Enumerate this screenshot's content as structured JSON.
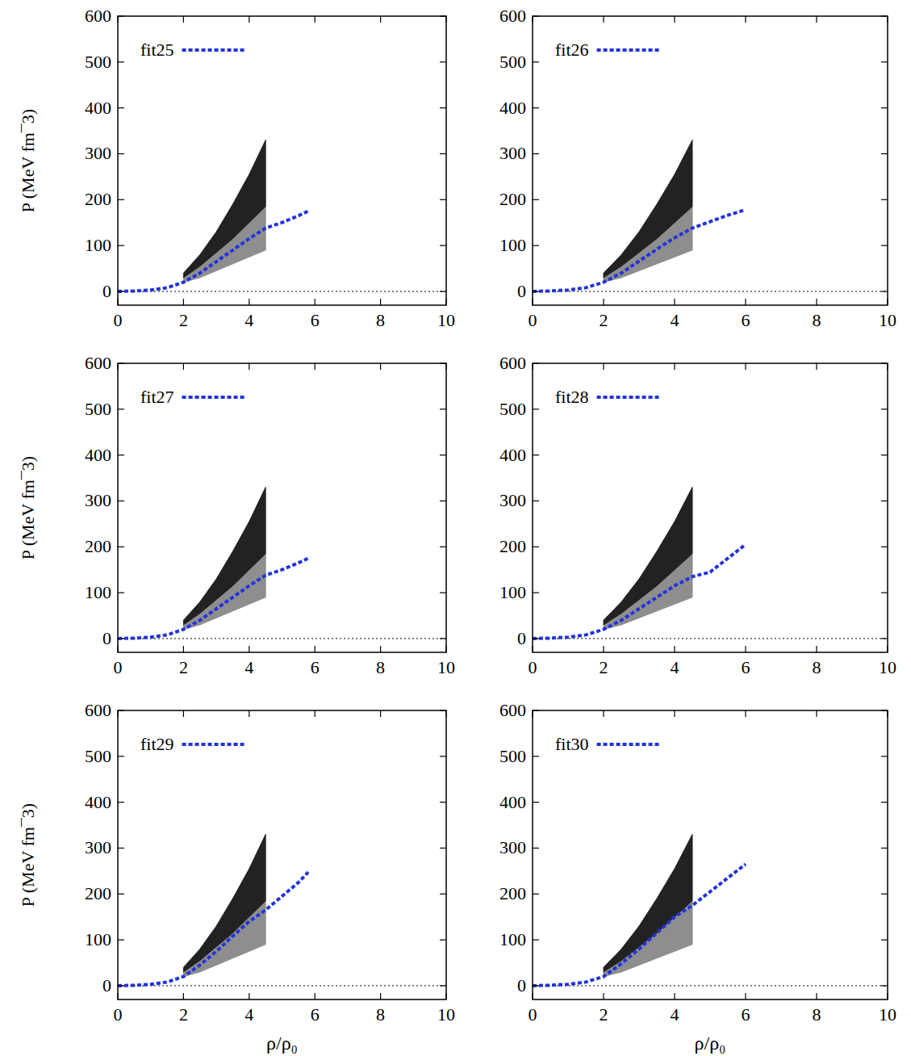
{
  "chart_data": [
    {
      "type": "line",
      "y_label": "P (MeV fm¯3)",
      "xlim": [
        0,
        10
      ],
      "xticks": [
        0,
        2,
        4,
        6,
        8,
        10
      ],
      "ylim": [
        -30,
        600
      ],
      "yticks": [
        0,
        100,
        200,
        300,
        400,
        500,
        600
      ],
      "zero_line": 0,
      "legend": "upper left",
      "series": [
        {
          "type": "area",
          "color": "#8e8e8e",
          "x": [
            2,
            2.5,
            3,
            3.5,
            4,
            4.5
          ],
          "lower": [
            20,
            30,
            45,
            60,
            75,
            90
          ],
          "upper": [
            30,
            55,
            85,
            115,
            150,
            185
          ]
        },
        {
          "type": "area",
          "color": "#222222",
          "x": [
            2,
            2.5,
            3,
            3.5,
            4,
            4.5
          ],
          "lower": [
            30,
            55,
            85,
            115,
            150,
            185
          ],
          "upper": [
            40,
            80,
            130,
            190,
            255,
            330
          ]
        },
        {
          "name": "fit25",
          "color": "#2233dd",
          "line_style": "dotted",
          "x": [
            0,
            0.5,
            1,
            1.5,
            2,
            2.5,
            3,
            3.5,
            4,
            4.5,
            5,
            5.5,
            5.8
          ],
          "values": [
            0,
            1,
            3,
            8,
            20,
            40,
            65,
            90,
            115,
            138,
            150,
            165,
            175
          ]
        }
      ]
    },
    {
      "type": "line",
      "xlim": [
        0,
        10
      ],
      "xticks": [
        0,
        2,
        4,
        6,
        8,
        10
      ],
      "ylim": [
        -30,
        600
      ],
      "yticks": [
        0,
        100,
        200,
        300,
        400,
        500,
        600
      ],
      "zero_line": 0,
      "legend": "upper left",
      "series": [
        {
          "type": "area",
          "color": "#8e8e8e",
          "x": [
            2,
            2.5,
            3,
            3.5,
            4,
            4.5
          ],
          "lower": [
            20,
            30,
            45,
            60,
            75,
            90
          ],
          "upper": [
            30,
            55,
            85,
            115,
            150,
            185
          ]
        },
        {
          "type": "area",
          "color": "#222222",
          "x": [
            2,
            2.5,
            3,
            3.5,
            4,
            4.5
          ],
          "lower": [
            30,
            55,
            85,
            115,
            150,
            185
          ],
          "upper": [
            40,
            80,
            130,
            190,
            255,
            330
          ]
        },
        {
          "name": "fit26",
          "color": "#2233dd",
          "line_style": "dotted",
          "x": [
            0,
            0.5,
            1,
            1.5,
            2,
            2.5,
            3,
            3.5,
            4,
            4.5,
            5,
            5.5,
            6
          ],
          "values": [
            0,
            1,
            3,
            8,
            20,
            40,
            66,
            92,
            117,
            138,
            152,
            166,
            178
          ]
        }
      ]
    },
    {
      "type": "line",
      "y_label": "P (MeV fm¯3)",
      "xlim": [
        0,
        10
      ],
      "xticks": [
        0,
        2,
        4,
        6,
        8,
        10
      ],
      "ylim": [
        -30,
        600
      ],
      "yticks": [
        0,
        100,
        200,
        300,
        400,
        500,
        600
      ],
      "zero_line": 0,
      "legend": "upper left",
      "series": [
        {
          "type": "area",
          "color": "#8e8e8e",
          "x": [
            2,
            2.5,
            3,
            3.5,
            4,
            4.5
          ],
          "lower": [
            20,
            30,
            45,
            60,
            75,
            90
          ],
          "upper": [
            30,
            55,
            85,
            115,
            150,
            185
          ]
        },
        {
          "type": "area",
          "color": "#222222",
          "x": [
            2,
            2.5,
            3,
            3.5,
            4,
            4.5
          ],
          "lower": [
            30,
            55,
            85,
            115,
            150,
            185
          ],
          "upper": [
            40,
            80,
            130,
            190,
            255,
            330
          ]
        },
        {
          "name": "fit27",
          "color": "#2233dd",
          "line_style": "dotted",
          "x": [
            0,
            0.5,
            1,
            1.5,
            2,
            2.5,
            3,
            3.5,
            4,
            4.5,
            5,
            5.5,
            5.8
          ],
          "values": [
            0,
            1,
            3,
            8,
            20,
            40,
            65,
            90,
            115,
            138,
            150,
            165,
            175
          ]
        }
      ]
    },
    {
      "type": "line",
      "xlim": [
        0,
        10
      ],
      "xticks": [
        0,
        2,
        4,
        6,
        8,
        10
      ],
      "ylim": [
        -30,
        600
      ],
      "yticks": [
        0,
        100,
        200,
        300,
        400,
        500,
        600
      ],
      "zero_line": 0,
      "legend": "upper left",
      "series": [
        {
          "type": "area",
          "color": "#8e8e8e",
          "x": [
            2,
            2.5,
            3,
            3.5,
            4,
            4.5
          ],
          "lower": [
            20,
            30,
            45,
            60,
            75,
            90
          ],
          "upper": [
            30,
            55,
            85,
            115,
            150,
            185
          ]
        },
        {
          "type": "area",
          "color": "#222222",
          "x": [
            2,
            2.5,
            3,
            3.5,
            4,
            4.5
          ],
          "lower": [
            30,
            55,
            85,
            115,
            150,
            185
          ],
          "upper": [
            40,
            80,
            130,
            190,
            255,
            330
          ]
        },
        {
          "name": "fit28",
          "color": "#2233dd",
          "line_style": "dotted",
          "x": [
            0,
            0.5,
            1,
            1.5,
            2,
            2.5,
            3,
            3.5,
            4,
            4.5,
            5,
            5.5,
            6
          ],
          "values": [
            0,
            1,
            3,
            8,
            20,
            40,
            65,
            90,
            115,
            135,
            145,
            175,
            205
          ]
        }
      ]
    },
    {
      "type": "line",
      "y_label": "P (MeV fm¯3)",
      "x_label": "ρ/ρ₀",
      "xlim": [
        0,
        10
      ],
      "xticks": [
        0,
        2,
        4,
        6,
        8,
        10
      ],
      "ylim": [
        -30,
        600
      ],
      "yticks": [
        0,
        100,
        200,
        300,
        400,
        500,
        600
      ],
      "zero_line": 0,
      "legend": "upper left",
      "series": [
        {
          "type": "area",
          "color": "#8e8e8e",
          "x": [
            2,
            2.5,
            3,
            3.5,
            4,
            4.5
          ],
          "lower": [
            20,
            30,
            45,
            60,
            75,
            90
          ],
          "upper": [
            30,
            55,
            85,
            115,
            150,
            185
          ]
        },
        {
          "type": "area",
          "color": "#222222",
          "x": [
            2,
            2.5,
            3,
            3.5,
            4,
            4.5
          ],
          "lower": [
            30,
            55,
            85,
            115,
            150,
            185
          ],
          "upper": [
            40,
            80,
            130,
            190,
            255,
            330
          ]
        },
        {
          "name": "fit29",
          "color": "#2233dd",
          "line_style": "dotted",
          "x": [
            0,
            0.5,
            1,
            1.5,
            2,
            2.5,
            3,
            3.5,
            4,
            4.5,
            5,
            5.5,
            5.8
          ],
          "values": [
            0,
            1,
            3,
            8,
            20,
            45,
            75,
            108,
            140,
            165,
            195,
            225,
            248
          ]
        }
      ]
    },
    {
      "type": "line",
      "x_label": "ρ/ρ₀",
      "xlim": [
        0,
        10
      ],
      "xticks": [
        0,
        2,
        4,
        6,
        8,
        10
      ],
      "ylim": [
        -30,
        600
      ],
      "yticks": [
        0,
        100,
        200,
        300,
        400,
        500,
        600
      ],
      "zero_line": 0,
      "legend": "upper left",
      "series": [
        {
          "type": "area",
          "color": "#8e8e8e",
          "x": [
            2,
            2.5,
            3,
            3.5,
            4,
            4.5
          ],
          "lower": [
            20,
            30,
            45,
            60,
            75,
            90
          ],
          "upper": [
            30,
            55,
            85,
            115,
            150,
            185
          ]
        },
        {
          "type": "area",
          "color": "#222222",
          "x": [
            2,
            2.5,
            3,
            3.5,
            4,
            4.5
          ],
          "lower": [
            30,
            55,
            85,
            115,
            150,
            185
          ],
          "upper": [
            40,
            80,
            130,
            190,
            255,
            330
          ]
        },
        {
          "name": "fit30",
          "color": "#2233dd",
          "line_style": "dotted",
          "x": [
            0,
            0.5,
            1,
            1.5,
            2,
            2.5,
            3,
            3.5,
            4,
            4.5,
            5,
            5.5,
            6
          ],
          "values": [
            0,
            1,
            3,
            8,
            20,
            48,
            80,
            115,
            150,
            175,
            205,
            235,
            265
          ]
        }
      ]
    }
  ]
}
